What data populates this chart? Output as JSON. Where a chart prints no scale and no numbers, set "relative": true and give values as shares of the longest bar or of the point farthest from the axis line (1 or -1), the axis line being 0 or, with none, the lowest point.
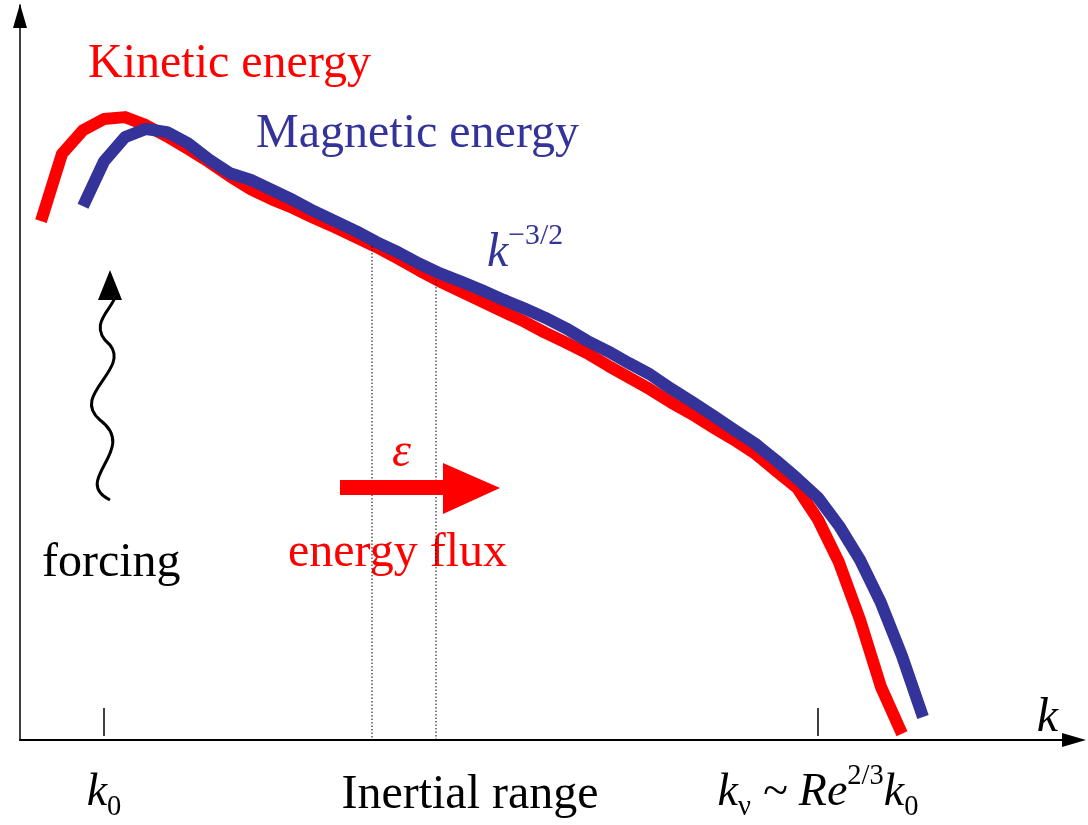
{
  "chart_data": {
    "type": "line",
    "relative": true,
    "xlabel": "k",
    "marker": "none",
    "line_style": "solid",
    "categories": [
      null,
      null,
      null,
      null,
      "k$_{0}$",
      null,
      null,
      null,
      null,
      null,
      null,
      null,
      null,
      null,
      null,
      null,
      null,
      null,
      null,
      null,
      null,
      null,
      null,
      null,
      null,
      null,
      null,
      null,
      null,
      null,
      null,
      null,
      null,
      null,
      null,
      null,
      null,
      null,
      "k$_{ν}$ ~ Re$^{2/3}$k$_{0}$",
      null,
      null,
      null,
      null,
      null,
      null,
      null,
      null,
      null,
      null,
      null,
      null
    ],
    "series": [
      {
        "name": "Kinetic energy",
        "color": "#ff0000",
        "values": [
          null,
          0.833,
          0.941,
          0.979,
          0.997,
          1,
          0.987,
          0.969,
          0.949,
          0.928,
          0.905,
          0.884,
          0.868,
          0.854,
          0.838,
          0.823,
          0.807,
          0.791,
          0.773,
          0.754,
          0.736,
          0.72,
          0.704,
          0.688,
          0.672,
          0.654,
          0.638,
          0.621,
          0.601,
          0.582,
          0.563,
          0.542,
          0.523,
          0.502,
          0.482,
          0.46,
          0.432,
          0.405,
          0.354,
          0.285,
          0.193,
          0.085,
          0.01,
          null,
          null,
          null,
          null,
          null,
          null,
          null,
          null
        ]
      },
      {
        "name": "Magnetic energy",
        "color": "#333399",
        "values": [
          null,
          null,
          null,
          0.857,
          0.929,
          0.968,
          0.981,
          0.976,
          0.958,
          0.932,
          0.91,
          0.899,
          0.883,
          0.867,
          0.849,
          0.833,
          0.817,
          0.799,
          0.783,
          0.765,
          0.749,
          0.736,
          0.722,
          0.707,
          0.693,
          0.678,
          0.661,
          0.641,
          0.624,
          0.605,
          0.587,
          0.564,
          0.543,
          0.521,
          0.498,
          0.476,
          0.449,
          0.42,
          0.389,
          0.344,
          0.289,
          0.22,
          0.135,
          0.037,
          null,
          null,
          null,
          null,
          null,
          null,
          null
        ]
      }
    ],
    "annotations": [
      "k$^{−3/2}$",
      "ε",
      "energy flux",
      "forcing",
      "Inertial range"
    ]
  }
}
